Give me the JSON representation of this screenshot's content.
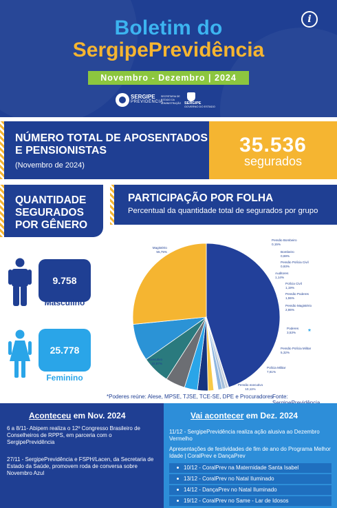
{
  "header": {
    "title_line1": "Boletim do",
    "title_line2": "SergipePrevidência",
    "period": "Novembro - Dezembro | 2024",
    "logo_sp_name": "SERGIPE",
    "logo_sp_sub": "PREVIDÊNCIA",
    "logo_secretaria": "SECRETARIA DE ESTADO DA ADMINISTRAÇÃO",
    "logo_gov_name": "SERGIPE",
    "logo_gov_sub": "GOVERNO DO ESTADO"
  },
  "total": {
    "title": "NÚMERO TOTAL DE APOSENTADOS E PENSIONISTAS",
    "subtitle": "(Novembro de 2024)",
    "value": "35.536",
    "unit": "segurados"
  },
  "gender": {
    "title": "QUANTIDADE SEGURADOS POR GÊNERO",
    "male_value": "9.758",
    "male_label": "Masculino",
    "female_value": "25.778",
    "female_label": "Feminino",
    "colors": {
      "male": "#1f3f93",
      "female": "#2aa5e8"
    }
  },
  "chart": {
    "title": "PARTICIPAÇÃO POR FOLHA",
    "subtitle": "Percentual da quantidade total de segurados por grupo",
    "note": "*Poderes reúne: Alese, MPSE, TJSE, TCE-SE, DPE e Procuradores",
    "source": "Fonte: SergipePrevidência"
  },
  "chart_data": {
    "type": "pie",
    "title": "PARTICIPAÇÃO POR FOLHA",
    "unit": "%",
    "slices": [
      {
        "name": "Magistério",
        "label": "55,75%",
        "value": 55.75,
        "color": "#22409a"
      },
      {
        "name": "Pensão Bombeiro",
        "label": "0,15%",
        "value": 0.15,
        "color": "#7a8fb0"
      },
      {
        "name": "Bombeiro",
        "label": "0,69%",
        "value": 0.69,
        "color": "#c8d0dc"
      },
      {
        "name": "Pensão Polícia Civil",
        "label": "0,93%",
        "value": 0.93,
        "color": "#a7c0dc"
      },
      {
        "name": "Auditores",
        "label": "1,14%",
        "value": 1.14,
        "color": "#8fb6e0"
      },
      {
        "name": "Polícia Civil",
        "label": "1,19%",
        "value": 1.19,
        "color": "#ffffff"
      },
      {
        "name": "Pensão Poderes",
        "label": "1,55%",
        "value": 1.55,
        "color": "#f7c948"
      },
      {
        "name": "Pensão Magistério",
        "label": "2,86%",
        "value": 2.86,
        "color": "#163580"
      },
      {
        "name": "Poderes",
        "label": "3,53%",
        "value": 3.53,
        "color": "#2aa5e8"
      },
      {
        "name": "Pensão Polícia Militar",
        "label": "5,32%",
        "value": 5.32,
        "color": "#6c6e73"
      },
      {
        "name": "Polícia Militar",
        "label": "7,61%",
        "value": 7.61,
        "color": "#2a7a7e"
      },
      {
        "name": "Pensão executivo",
        "label": "10,11%",
        "value": 10.11,
        "color": "#2b93d6"
      },
      {
        "name": "Executivo",
        "label": "32,87%",
        "value": 32.87,
        "color": "#f5b531"
      }
    ],
    "legend": "none"
  },
  "past": {
    "title_u": "Aconteceu",
    "title_rest": " em Nov. 2024",
    "item1": "6 a 8/11- Abipem realiza o 12º Congresso Brasileiro de Conselheiros de RPPS, em parceria com o SergipePrevidência",
    "item2": "27/11 - SergipePrevidência e FSPH/Lacen, da Secretaria de Estado da Saúde, promovem roda de conversa sobre Novembro Azul"
  },
  "future": {
    "title_u": "Vai acontecer",
    "title_rest": " em Dez. 2024",
    "item1": "11/12 - SergipePrevidência realiza ação alusiva ao Dezembro Vermelho",
    "item2": "Apresentações de festividades de fim de ano do Programa Melhor Idade | CoralPrev e DançaPrev",
    "list": [
      "10/12 - CoralPrev na Maternidade Santa Isabel",
      "13/12 - CoralPrev no Natal Iluminado",
      "14/12 - DançaPrev no Natal Iluminado",
      "19/12 - CoralPrev no Same - Lar de Idosos"
    ]
  }
}
